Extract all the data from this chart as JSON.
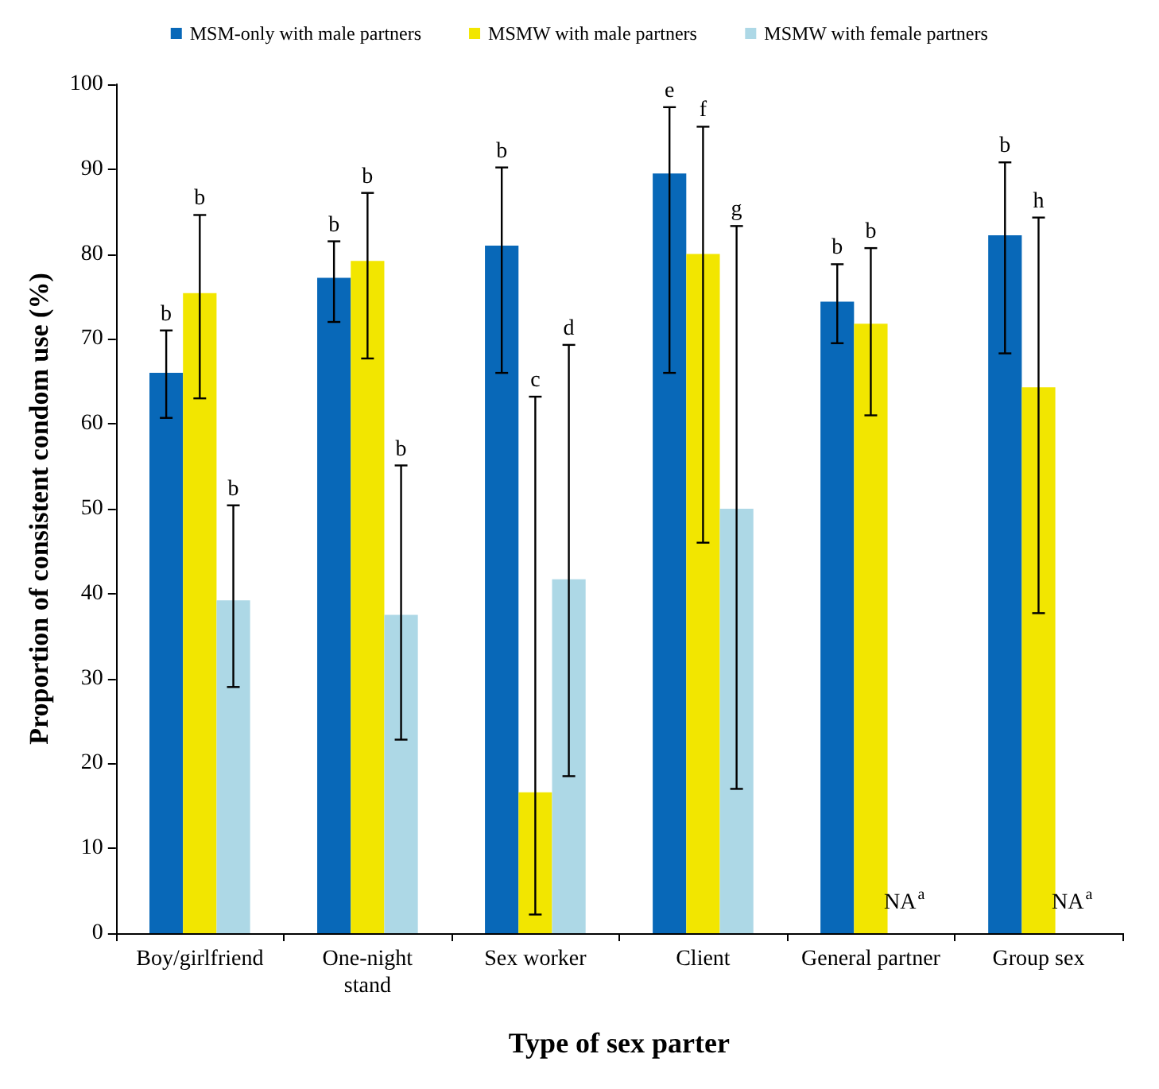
{
  "chart_data": {
    "type": "bar",
    "xlabel": "Type of sex parter",
    "ylabel": "Proportion of consistent condom use (%)",
    "categories": [
      "Boy/girlfriend",
      "One-night\nstand",
      "Sex worker",
      "Client",
      "General partner",
      "Group sex"
    ],
    "series": [
      {
        "name": "MSM-only with male partners",
        "color": "#0868b8",
        "values": [
          66,
          77.2,
          81,
          89.5,
          74.4,
          82.2
        ],
        "errors": [
          [
            60.7,
            71
          ],
          [
            72,
            81.5
          ],
          [
            66,
            90.2
          ],
          [
            66,
            97.3
          ],
          [
            69.5,
            78.8
          ],
          [
            68.3,
            90.8
          ]
        ]
      },
      {
        "name": "MSMW with male partners",
        "color": "#f2e600",
        "values": [
          75.4,
          79.2,
          16.6,
          80,
          71.8,
          64.3
        ],
        "errors": [
          [
            63,
            84.6
          ],
          [
            67.7,
            87.2
          ],
          [
            2.2,
            63.2
          ],
          [
            46,
            95
          ],
          [
            61,
            80.7
          ],
          [
            37.7,
            84.3
          ]
        ]
      },
      {
        "name": "MSMW with female partners",
        "color": "#add8e6",
        "values": [
          39.2,
          37.5,
          41.7,
          50,
          null,
          null
        ],
        "errors": [
          [
            29,
            50.4
          ],
          [
            22.8,
            55.1
          ],
          [
            18.5,
            69.3
          ],
          [
            17,
            83.3
          ],
          null,
          null
        ]
      }
    ],
    "annotations": [
      "b",
      "b",
      "b",
      "b",
      "b",
      "b",
      "b",
      "c",
      "d",
      "e",
      "f",
      "g",
      "b",
      "b",
      "NA$^{a}$",
      "b",
      "h",
      "NA$^{a}$"
    ],
    "ylim": [
      0,
      100
    ],
    "yticks": [
      0,
      10,
      20,
      30,
      40,
      50,
      60,
      70,
      80,
      90,
      100
    ],
    "grid": false,
    "legend": "top"
  }
}
